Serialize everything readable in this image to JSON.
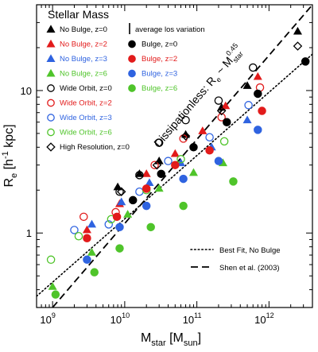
{
  "chart_data": {
    "type": "scatter",
    "xscale": "log",
    "yscale": "log",
    "xlim": [
      600000000.0,
      4000000000000.0
    ],
    "ylim": [
      0.3,
      40
    ],
    "xticks": [
      {
        "value": 1000000000.0,
        "base": "10",
        "exp": "9"
      },
      {
        "value": 10000000000.0,
        "base": "10",
        "exp": "10"
      },
      {
        "value": 100000000000.0,
        "base": "10",
        "exp": "11"
      },
      {
        "value": 1000000000000.0,
        "base": "10",
        "exp": "12"
      }
    ],
    "yticks": [
      {
        "value": 1,
        "label": "1"
      },
      {
        "value": 10,
        "label": "10"
      }
    ],
    "xlabel": {
      "main": "M",
      "sub1": "star",
      "mid": " [M",
      "sub2": "sun",
      "end": "]"
    },
    "ylabel": {
      "main": "R",
      "sub": "e",
      "rest": " [h",
      "sup": "-1",
      "end": " kpc]"
    },
    "legend_title": "Stellar Mass",
    "avg_note": "average los variation",
    "dissipationless_label": {
      "text": "Dissipationless: R",
      "sub": "e",
      "mid": " ~ M",
      "sub2": "star",
      "sup": "0.45"
    },
    "lines": [
      {
        "name": "Best Fit, No Bulge",
        "style": "dotted",
        "points": [
          [
            600000000.0,
            0.36
          ],
          [
            4000000000000.0,
            18.0
          ]
        ]
      },
      {
        "name": "Shen et al. (2003)",
        "style": "dashed",
        "points": [
          [
            1000000000.0,
            0.3
          ],
          [
            4000000000000.0,
            40.0
          ]
        ]
      }
    ],
    "legend_left": [
      {
        "label": "No Bulge, z=0",
        "marker": "triangle",
        "fill": true,
        "color": "#000000"
      },
      {
        "label": "No Bulge, z=2",
        "marker": "triangle",
        "fill": true,
        "color": "#e21b1b"
      },
      {
        "label": "No Bulge, z=3",
        "marker": "triangle",
        "fill": true,
        "color": "#2f63e0"
      },
      {
        "label": "No Bulge, z=6",
        "marker": "triangle",
        "fill": true,
        "color": "#4fc42a"
      },
      {
        "label": "Wide Orbit, z=0",
        "marker": "circle",
        "fill": false,
        "color": "#000000"
      },
      {
        "label": "Wide Orbit, z=2",
        "marker": "circle",
        "fill": false,
        "color": "#e21b1b"
      },
      {
        "label": "Wide Orbit, z=3",
        "marker": "circle",
        "fill": false,
        "color": "#2f63e0"
      },
      {
        "label": "Wide Orbit, z=6",
        "marker": "circle",
        "fill": false,
        "color": "#4fc42a"
      },
      {
        "label": "High Resolution, z=0",
        "marker": "diamond",
        "fill": false,
        "color": "#000000"
      }
    ],
    "legend_right": [
      {
        "label": "Bulge, z=0",
        "marker": "circle",
        "fill": true,
        "color": "#000000"
      },
      {
        "label": "Bulge, z=2",
        "marker": "circle",
        "fill": true,
        "color": "#e21b1b"
      },
      {
        "label": "Bulge, z=3",
        "marker": "circle",
        "fill": true,
        "color": "#2f63e0"
      },
      {
        "label": "Bulge, z=6",
        "marker": "circle",
        "fill": true,
        "color": "#4fc42a"
      }
    ],
    "series": [
      {
        "name": "No Bulge, z=0",
        "marker": "triangle",
        "fill": true,
        "color": "#000000",
        "points": [
          [
            8000000000.0,
            2.1
          ],
          [
            16000000000.0,
            2.6
          ],
          [
            30000000000.0,
            3.2
          ],
          [
            70000000000.0,
            4.9
          ],
          [
            220000000000.0,
            7.6
          ],
          [
            500000000000.0,
            10.8
          ],
          [
            2500000000000.0,
            26
          ]
        ]
      },
      {
        "name": "No Bulge, z=2",
        "marker": "triangle",
        "fill": true,
        "color": "#e21b1b",
        "points": [
          [
            3000000000.0,
            1.05
          ],
          [
            8500000000.0,
            1.6
          ],
          [
            20000000000.0,
            2.6
          ],
          [
            50000000000.0,
            3.6
          ],
          [
            120000000000.0,
            5.2
          ],
          [
            250000000000.0,
            7.8
          ],
          [
            700000000000.0,
            12.5
          ]
        ]
      },
      {
        "name": "No Bulge, z=3",
        "marker": "triangle",
        "fill": true,
        "color": "#2f63e0",
        "points": [
          [
            3500000000.0,
            1.15
          ],
          [
            9000000000.0,
            1.65
          ],
          [
            22000000000.0,
            2.25
          ],
          [
            60000000000.0,
            3.1
          ],
          [
            160000000000.0,
            4.0
          ],
          [
            500000000000.0,
            6.2
          ]
        ]
      },
      {
        "name": "No Bulge, z=6",
        "marker": "triangle",
        "fill": true,
        "color": "#4fc42a",
        "points": [
          [
            1000000000.0,
            0.42
          ],
          [
            3500000000.0,
            0.73
          ],
          [
            11000000000.0,
            1.35
          ],
          [
            30000000000.0,
            2.05
          ],
          [
            90000000000.0,
            2.65
          ],
          [
            230000000000.0,
            3.1
          ]
        ]
      },
      {
        "name": "Wide Orbit, z=0",
        "marker": "circle",
        "fill": false,
        "color": "#000000",
        "points": [
          [
            8500000000.0,
            1.95
          ],
          [
            16000000000.0,
            2.55
          ],
          [
            30000000000.0,
            4.3
          ],
          [
            70000000000.0,
            6.2
          ],
          [
            200000000000.0,
            8.5
          ],
          [
            600000000000.0,
            14.5
          ]
        ]
      },
      {
        "name": "Wide Orbit, z=2",
        "marker": "circle",
        "fill": false,
        "color": "#e21b1b",
        "points": [
          [
            2700000000.0,
            1.3
          ],
          [
            7500000000.0,
            1.4
          ],
          [
            26000000000.0,
            3.0
          ],
          [
            65000000000.0,
            4.6
          ],
          [
            220000000000.0,
            6.5
          ],
          [
            750000000000.0,
            10.5
          ]
        ]
      },
      {
        "name": "Wide Orbit, z=3",
        "marker": "circle",
        "fill": false,
        "color": "#2f63e0",
        "points": [
          [
            2000000000.0,
            1.05
          ],
          [
            6000000000.0,
            1.15
          ],
          [
            16000000000.0,
            1.95
          ],
          [
            40000000000.0,
            3.2
          ],
          [
            150000000000.0,
            4.7
          ],
          [
            520000000000.0,
            7.9
          ]
        ]
      },
      {
        "name": "Wide Orbit, z=6",
        "marker": "circle",
        "fill": false,
        "color": "#4fc42a",
        "points": [
          [
            950000000.0,
            0.65
          ],
          [
            2300000000.0,
            0.95
          ],
          [
            6500000000.0,
            1.25
          ],
          [
            20000000000.0,
            2.0
          ],
          [
            60000000000.0,
            3.3
          ],
          [
            240000000000.0,
            4.4
          ]
        ]
      },
      {
        "name": "High Resolution, z=0",
        "marker": "diamond",
        "fill": false,
        "color": "#000000",
        "points": [
          [
            9000000000.0,
            1.95
          ],
          [
            28000000000.0,
            3.0
          ],
          [
            70000000000.0,
            4.8
          ],
          [
            220000000000.0,
            7.2
          ],
          [
            2500000000000.0,
            20.5
          ]
        ]
      },
      {
        "name": "Bulge, z=0",
        "marker": "circle",
        "fill": true,
        "color": "#000000",
        "points": [
          [
            13000000000.0,
            1.7
          ],
          [
            32000000000.0,
            2.6
          ],
          [
            90000000000.0,
            4.0
          ],
          [
            260000000000.0,
            6.0
          ],
          [
            700000000000.0,
            9.5
          ],
          [
            3200000000000.0,
            16
          ]
        ]
      },
      {
        "name": "Bulge, z=2",
        "marker": "circle",
        "fill": true,
        "color": "#e21b1b",
        "points": [
          [
            3000000000.0,
            0.92
          ],
          [
            7800000000.0,
            1.3
          ],
          [
            20000000000.0,
            2.05
          ],
          [
            50000000000.0,
            3.0
          ],
          [
            150000000000.0,
            3.8
          ],
          [
            800000000000.0,
            7.2
          ]
        ]
      },
      {
        "name": "Bulge, z=3",
        "marker": "circle",
        "fill": true,
        "color": "#2f63e0",
        "points": [
          [
            3000000000.0,
            0.65
          ],
          [
            8500000000.0,
            1.1
          ],
          [
            20000000000.0,
            1.55
          ],
          [
            65000000000.0,
            2.4
          ],
          [
            200000000000.0,
            3.2
          ],
          [
            700000000000.0,
            5.3
          ]
        ]
      },
      {
        "name": "Bulge, z=6",
        "marker": "circle",
        "fill": true,
        "color": "#4fc42a",
        "points": [
          [
            1100000000.0,
            0.37
          ],
          [
            3800000000.0,
            0.53
          ],
          [
            8500000000.0,
            0.78
          ],
          [
            23000000000.0,
            1.1
          ],
          [
            65000000000.0,
            1.55
          ],
          [
            320000000000.0,
            2.3
          ]
        ]
      }
    ],
    "line_legend": [
      {
        "label": "Best Fit, No Bulge",
        "style": "dotted"
      },
      {
        "label": "Shen et al. (2003)",
        "style": "dashed"
      }
    ]
  }
}
